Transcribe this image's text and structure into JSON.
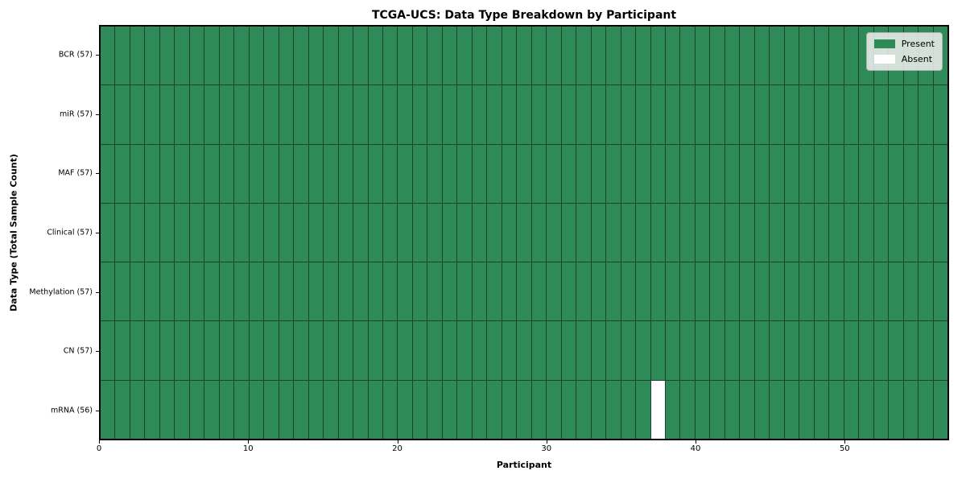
{
  "chart_data": {
    "type": "heatmap",
    "title": "TCGA-UCS: Data Type Breakdown by Participant",
    "xlabel": "Participant",
    "ylabel": "Data Type (Total Sample Count)",
    "n_participants": 57,
    "x_ticks": [
      0,
      10,
      20,
      30,
      40,
      50
    ],
    "rows": [
      {
        "label": "BCR (57)",
        "data_type": "BCR",
        "sample_count": 57,
        "absent_participants": []
      },
      {
        "label": "miR (57)",
        "data_type": "miR",
        "sample_count": 57,
        "absent_participants": []
      },
      {
        "label": "MAF (57)",
        "data_type": "MAF",
        "sample_count": 57,
        "absent_participants": []
      },
      {
        "label": "Clinical (57)",
        "data_type": "Clinical",
        "sample_count": 57,
        "absent_participants": []
      },
      {
        "label": "Methylation (57)",
        "data_type": "Methylation",
        "sample_count": 57,
        "absent_participants": []
      },
      {
        "label": "CN (57)",
        "data_type": "CN",
        "sample_count": 57,
        "absent_participants": []
      },
      {
        "label": "mRNA (56)",
        "data_type": "mRNA",
        "sample_count": 56,
        "absent_participants": [
          37
        ]
      }
    ],
    "colors": {
      "present": "#2e8b57",
      "absent": "#ffffff",
      "grid_line": "#1d4230",
      "frame": "#000000"
    },
    "legend": {
      "position": "upper right",
      "items": [
        {
          "label": "Present",
          "color": "#2e8b57"
        },
        {
          "label": "Absent",
          "color": "#ffffff"
        }
      ]
    }
  }
}
